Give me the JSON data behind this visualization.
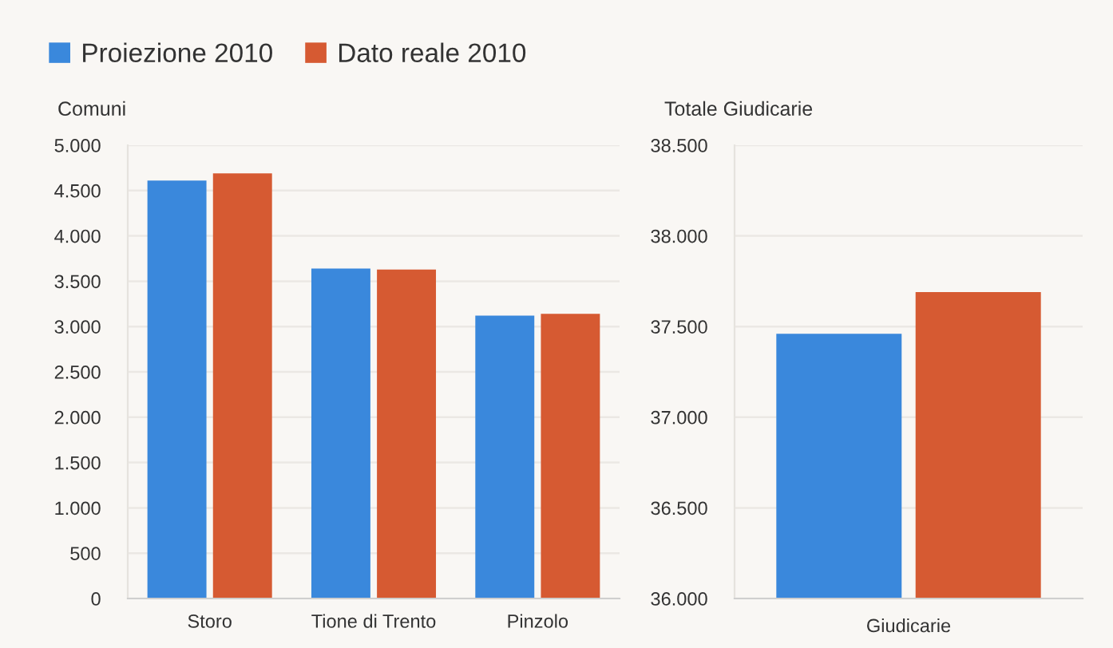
{
  "chart_data": [
    {
      "type": "bar",
      "title": "Comuni",
      "categories": [
        "Storo",
        "Tione di Trento",
        "Pinzolo"
      ],
      "series": [
        {
          "name": "Proiezione 2010",
          "color": "#3a88dc",
          "values": [
            4610,
            3640,
            3120
          ]
        },
        {
          "name": "Dato reale 2010",
          "color": "#d65a32",
          "values": [
            4690,
            3630,
            3140
          ]
        }
      ],
      "ylim": [
        0,
        5000
      ],
      "yticks": [
        0,
        500,
        {
          "value": 1000,
          "label": "1.000"
        },
        {
          "value": 1500,
          "label": "1.500"
        },
        {
          "value": 2000,
          "label": "2.000"
        },
        {
          "value": 2500,
          "label": "2.500"
        },
        {
          "value": 3000,
          "label": "3.000"
        },
        {
          "value": 3500,
          "label": "3.500"
        },
        {
          "value": 4000,
          "label": "4.000"
        },
        {
          "value": 4500,
          "label": "4.500"
        },
        {
          "value": 5000,
          "label": "5.000"
        }
      ],
      "grid": "y",
      "legend": "top left",
      "stacked": false
    },
    {
      "type": "bar",
      "title": "Totale Giudicarie",
      "xlabel": "Giudicarie",
      "categories": [
        null,
        null
      ],
      "series": [
        {
          "colors": [
            "#3a88dc",
            "#d65a32"
          ],
          "values": [
            37460,
            37690
          ]
        }
      ],
      "ylim": [
        36000,
        38500
      ],
      "yticks": [
        {
          "value": 36000,
          "label": "36.000"
        },
        {
          "value": 36500,
          "label": "36.500"
        },
        {
          "value": 37000,
          "label": "37.000"
        },
        {
          "value": 37500,
          "label": "37.500"
        },
        {
          "value": 38000,
          "label": "38.000"
        },
        {
          "value": 38500,
          "label": "38.500"
        }
      ],
      "grid": "y"
    }
  ]
}
